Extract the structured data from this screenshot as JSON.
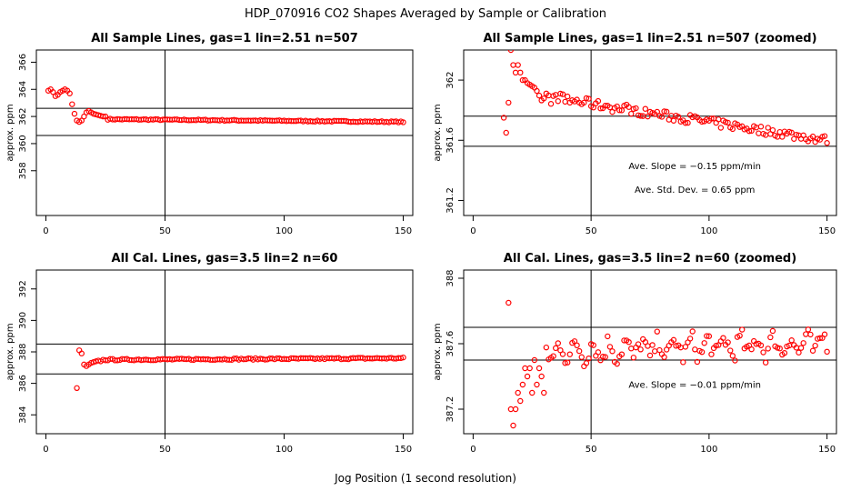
{
  "figure": {
    "title": "HDP_070916  CO2 Shapes Averaged by Sample or Calibration",
    "xlabel": "Jog Position (1 second resolution)",
    "point_color": "#ff0000"
  },
  "chart_data": [
    {
      "type": "scatter",
      "title": "All Sample Lines, gas=1 lin=2.51 n=507",
      "ylabel": "approx. ppm",
      "xlim": [
        -4,
        154
      ],
      "ylim": [
        354.7,
        366.9
      ],
      "xticks": [
        0,
        50,
        100,
        150
      ],
      "yticks": [
        358,
        360,
        362,
        364,
        366
      ],
      "vline": 50,
      "hlines": [
        362.6,
        360.6
      ],
      "annotations": [],
      "shape": "sample",
      "ystart": 361.8,
      "yend": 361.6,
      "noise": 0.04,
      "early": [
        [
          1,
          363.9
        ],
        [
          2,
          364.0
        ],
        [
          3,
          363.8
        ],
        [
          4,
          363.5
        ],
        [
          5,
          363.6
        ],
        [
          6,
          363.8
        ],
        [
          7,
          363.9
        ],
        [
          8,
          364.0
        ],
        [
          9,
          363.9
        ],
        [
          10,
          363.7
        ],
        [
          11,
          362.9
        ],
        [
          12,
          362.2
        ],
        [
          13,
          361.7
        ],
        [
          14,
          361.6
        ],
        [
          15,
          361.7
        ],
        [
          16,
          362.0
        ],
        [
          17,
          362.3
        ],
        [
          18,
          362.4
        ],
        [
          19,
          362.3
        ],
        [
          20,
          362.2
        ],
        [
          21,
          362.15
        ],
        [
          22,
          362.1
        ],
        [
          23,
          362.05
        ],
        [
          24,
          362.0
        ],
        [
          25,
          362.0
        ]
      ]
    },
    {
      "type": "scatter",
      "title": "All Sample Lines, gas=1 lin=2.51 n=507 (zoomed)",
      "ylabel": "approx. ppm",
      "xlim": [
        -4,
        154
      ],
      "ylim": [
        361.1,
        362.2
      ],
      "xticks": [
        0,
        50,
        100,
        150
      ],
      "yticks": [
        361.2,
        361.6,
        362.0
      ],
      "vline": 50,
      "hlines": [
        361.76,
        361.56
      ],
      "annotations": [
        "Ave. Slope =  −0.15  ppm/min",
        "Ave. Std. Dev. =  0.65  ppm"
      ],
      "shape": "sample_zoom",
      "ystart": 361.9,
      "yend": 361.6,
      "noise": 0.03,
      "early": [
        [
          13,
          361.75
        ],
        [
          14,
          361.65
        ],
        [
          15,
          361.85
        ],
        [
          16,
          362.2
        ],
        [
          17,
          362.1
        ],
        [
          18,
          362.05
        ],
        [
          19,
          362.1
        ],
        [
          20,
          362.05
        ],
        [
          21,
          362.0
        ],
        [
          22,
          362.0
        ],
        [
          23,
          361.98
        ],
        [
          24,
          361.97
        ],
        [
          25,
          361.96
        ],
        [
          26,
          361.95
        ]
      ]
    },
    {
      "type": "scatter",
      "title": "All Cal. Lines, gas=3.5 lin=2 n=60",
      "ylabel": "approx. ppm",
      "xlim": [
        -4,
        154
      ],
      "ylim": [
        382.8,
        393.2
      ],
      "xticks": [
        0,
        50,
        100,
        150
      ],
      "yticks": [
        384,
        386,
        388,
        390,
        392
      ],
      "vline": 50,
      "hlines": [
        388.5,
        386.6
      ],
      "annotations": [],
      "shape": "cal",
      "ystart": 387.5,
      "yend": 387.6,
      "noise": 0.05,
      "early": [
        [
          13,
          385.7
        ],
        [
          14,
          388.1
        ],
        [
          15,
          387.9
        ],
        [
          16,
          387.2
        ],
        [
          17,
          387.1
        ],
        [
          18,
          387.2
        ],
        [
          19,
          387.3
        ],
        [
          20,
          387.35
        ],
        [
          21,
          387.4
        ],
        [
          22,
          387.45
        ],
        [
          23,
          387.4
        ],
        [
          24,
          387.5
        ]
      ]
    },
    {
      "type": "scatter",
      "title": "All Cal. Lines, gas=3.5 lin=2 n=60 (zoomed)",
      "ylabel": "approx. ppm",
      "xlim": [
        -4,
        154
      ],
      "ylim": [
        387.05,
        388.05
      ],
      "xticks": [
        0,
        50,
        100,
        150
      ],
      "yticks": [
        387.2,
        387.6,
        388.0
      ],
      "vline": 50,
      "hlines": [
        387.7,
        387.5
      ],
      "annotations": [
        "Ave. Slope =  −0.01  ppm/min"
      ],
      "shape": "cal_zoom",
      "ystart": 387.55,
      "yend": 387.6,
      "noise": 0.06,
      "early": [
        [
          14,
          388.1
        ],
        [
          15,
          387.85
        ],
        [
          16,
          387.2
        ],
        [
          17,
          387.1
        ],
        [
          18,
          387.2
        ],
        [
          19,
          387.3
        ],
        [
          20,
          387.25
        ],
        [
          21,
          387.35
        ],
        [
          22,
          387.45
        ],
        [
          23,
          387.4
        ],
        [
          24,
          387.45
        ],
        [
          25,
          387.3
        ],
        [
          26,
          387.5
        ],
        [
          27,
          387.35
        ],
        [
          28,
          387.45
        ],
        [
          29,
          387.4
        ],
        [
          30,
          387.3
        ]
      ]
    }
  ]
}
